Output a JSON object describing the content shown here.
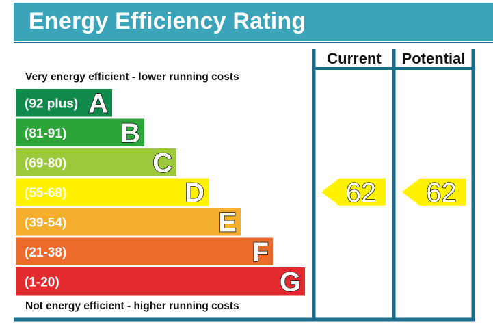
{
  "title": "Energy Efficiency Rating",
  "colors": {
    "title_bar": "#3ba4b8",
    "frame": "#1a6e8c"
  },
  "chart_data": {
    "type": "bar",
    "title": "Energy Efficiency Rating",
    "top_caption": "Very energy efficient - lower running costs",
    "bottom_caption": "Not energy efficient - higher running costs",
    "columns": [
      "Current",
      "Potential"
    ],
    "bands": [
      {
        "letter": "A",
        "range": "(92 plus)",
        "min": 92,
        "max": 100,
        "color": "#0f8a4a"
      },
      {
        "letter": "B",
        "range": "(81-91)",
        "min": 81,
        "max": 91,
        "color": "#2ca43a"
      },
      {
        "letter": "C",
        "range": "(69-80)",
        "min": 69,
        "max": 80,
        "color": "#9cc93b"
      },
      {
        "letter": "D",
        "range": "(55-68)",
        "min": 55,
        "max": 68,
        "color": "#fff200"
      },
      {
        "letter": "E",
        "range": "(39-54)",
        "min": 39,
        "max": 54,
        "color": "#f6ae2d"
      },
      {
        "letter": "F",
        "range": "(21-38)",
        "min": 21,
        "max": 38,
        "color": "#ec6b2c"
      },
      {
        "letter": "G",
        "range": "(1-20)",
        "min": 1,
        "max": 20,
        "color": "#e32b2f"
      }
    ],
    "ratings": {
      "current": {
        "value": 62,
        "band": "D"
      },
      "potential": {
        "value": 62,
        "band": "D"
      }
    }
  }
}
